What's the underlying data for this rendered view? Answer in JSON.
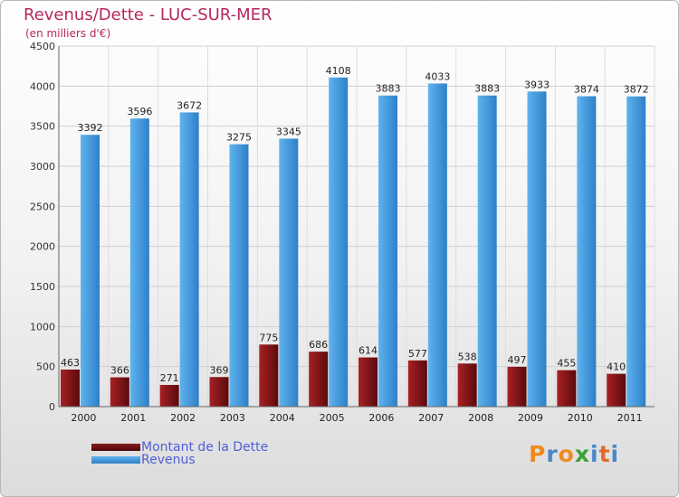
{
  "header": {
    "title": "Revenus/Dette - LUC-SUR-MER",
    "subtitle": "(en milliers d'€)"
  },
  "brand": {
    "letters": [
      "P",
      "r",
      "o",
      "x",
      "i",
      "t",
      "i"
    ],
    "colors": [
      "#f08a1f",
      "#4b87c8",
      "#f08a1f",
      "#3aa03a",
      "#4b87c8",
      "#e06a2a",
      "#4b87c8"
    ]
  },
  "chart_data": {
    "type": "bar",
    "categories": [
      "2000",
      "2001",
      "2002",
      "2003",
      "2004",
      "2005",
      "2006",
      "2007",
      "2008",
      "2009",
      "2010",
      "2011"
    ],
    "series": [
      {
        "name": "Montant de la Dette",
        "color": "#7a1214",
        "values": [
          463,
          366,
          271,
          369,
          775,
          686,
          614,
          577,
          538,
          497,
          455,
          410
        ]
      },
      {
        "name": "Revenus",
        "color": "#3e97dc",
        "values": [
          3392,
          3596,
          3672,
          3275,
          3345,
          4108,
          3883,
          4033,
          3883,
          3933,
          3874,
          3872
        ]
      }
    ],
    "ylim": [
      0,
      4500
    ],
    "yticks": [
      0,
      500,
      1000,
      1500,
      2000,
      2500,
      3000,
      3500,
      4000,
      4500
    ],
    "grid": true,
    "legend_position": "bottom-left"
  }
}
